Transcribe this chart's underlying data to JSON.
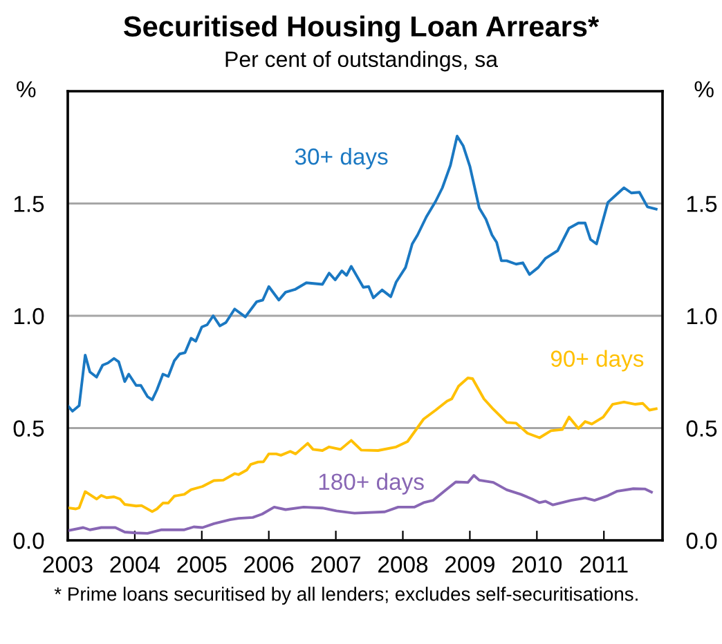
{
  "chart_data": {
    "type": "line",
    "title": "Securitised Housing Loan Arrears*",
    "subtitle": "Per cent of outstandings, sa",
    "ylabel": "%",
    "y2label": "%",
    "annotations": [
      "* Prime loans securitised by all lenders; excludes self-securitisations."
    ],
    "xlim": [
      2003,
      2011.875
    ],
    "xticks": [
      2003,
      2004,
      2005,
      2006,
      2007,
      2008,
      2009,
      2010,
      2011
    ],
    "ylim": [
      0,
      2
    ],
    "yticks": [
      {
        "value": 0,
        "label": "0.0"
      },
      {
        "value": 0.5,
        "label": "0.5"
      },
      {
        "value": 1,
        "label": "1.0"
      },
      {
        "value": 1.5,
        "label": "1.5"
      }
    ],
    "y2lim": [
      0,
      2
    ],
    "y2ticks": [
      {
        "value": 0,
        "label": "0.0"
      },
      {
        "value": 0.5,
        "label": "0.5"
      },
      {
        "value": 1,
        "label": "1.0"
      },
      {
        "value": 1.5,
        "label": "1.5"
      }
    ],
    "grid": "y",
    "legend": false,
    "marker": "none",
    "line_style": "solid",
    "series": [
      {
        "name": "30+ days",
        "color": "#1a78c2",
        "x": [
          2003.0,
          2003.07,
          2003.17,
          2003.26,
          2003.33,
          2003.43,
          2003.52,
          2003.6,
          2003.69,
          2003.76,
          2003.85,
          2003.91,
          2004.02,
          2004.09,
          2004.19,
          2004.26,
          2004.33,
          2004.42,
          2004.5,
          2004.59,
          2004.67,
          2004.75,
          2004.84,
          2004.91,
          2005.0,
          2005.08,
          2005.17,
          2005.27,
          2005.36,
          2005.49,
          2005.65,
          2005.82,
          2005.91,
          2006.0,
          2006.15,
          2006.25,
          2006.39,
          2006.56,
          2006.8,
          2006.9,
          2006.99,
          2007.09,
          2007.16,
          2007.23,
          2007.41,
          2007.49,
          2007.56,
          2007.69,
          2007.82,
          2007.9,
          2008.04,
          2008.14,
          2008.22,
          2008.35,
          2008.49,
          2008.59,
          2008.71,
          2008.81,
          2008.9,
          2009.0,
          2009.14,
          2009.24,
          2009.33,
          2009.4,
          2009.47,
          2009.55,
          2009.69,
          2009.79,
          2009.89,
          2010.02,
          2010.13,
          2010.31,
          2010.48,
          2010.62,
          2010.72,
          2010.8,
          2010.89,
          2011.06,
          2011.2,
          2011.3,
          2011.41,
          2011.53,
          2011.65,
          2011.78
        ],
        "values": [
          0.6,
          0.575,
          0.6,
          0.825,
          0.75,
          0.727,
          0.78,
          0.79,
          0.81,
          0.795,
          0.707,
          0.74,
          0.69,
          0.69,
          0.64,
          0.626,
          0.67,
          0.74,
          0.73,
          0.8,
          0.83,
          0.836,
          0.9,
          0.887,
          0.95,
          0.96,
          1.0,
          0.955,
          0.97,
          1.03,
          0.995,
          1.063,
          1.07,
          1.13,
          1.07,
          1.105,
          1.117,
          1.147,
          1.14,
          1.19,
          1.16,
          1.2,
          1.18,
          1.22,
          1.127,
          1.13,
          1.08,
          1.115,
          1.085,
          1.15,
          1.215,
          1.32,
          1.36,
          1.44,
          1.51,
          1.57,
          1.67,
          1.8,
          1.757,
          1.666,
          1.48,
          1.43,
          1.36,
          1.327,
          1.245,
          1.245,
          1.23,
          1.236,
          1.184,
          1.215,
          1.256,
          1.29,
          1.39,
          1.413,
          1.413,
          1.34,
          1.32,
          1.505,
          1.543,
          1.57,
          1.547,
          1.55,
          1.485,
          1.475
        ]
      },
      {
        "name": "90+ days",
        "color": "#ffc000",
        "x": [
          2003.0,
          2003.12,
          2003.17,
          2003.26,
          2003.43,
          2003.5,
          2003.58,
          2003.69,
          2003.78,
          2003.85,
          2004.02,
          2004.1,
          2004.26,
          2004.33,
          2004.42,
          2004.5,
          2004.59,
          2004.74,
          2004.84,
          2005.01,
          2005.18,
          2005.32,
          2005.49,
          2005.55,
          2005.67,
          2005.73,
          2005.84,
          2005.92,
          2006.0,
          2006.11,
          2006.18,
          2006.32,
          2006.4,
          2006.58,
          2006.66,
          2006.8,
          2006.9,
          2007.07,
          2007.23,
          2007.38,
          2007.63,
          2007.9,
          2008.07,
          2008.31,
          2008.49,
          2008.66,
          2008.73,
          2008.83,
          2008.97,
          2009.04,
          2009.21,
          2009.35,
          2009.55,
          2009.69,
          2009.86,
          2010.04,
          2010.21,
          2010.38,
          2010.48,
          2010.62,
          2010.72,
          2010.82,
          2010.99,
          2011.13,
          2011.3,
          2011.47,
          2011.58,
          2011.68,
          2011.78
        ],
        "values": [
          0.145,
          0.14,
          0.145,
          0.217,
          0.184,
          0.2,
          0.19,
          0.194,
          0.184,
          0.16,
          0.153,
          0.155,
          0.128,
          0.14,
          0.166,
          0.166,
          0.197,
          0.205,
          0.226,
          0.24,
          0.266,
          0.268,
          0.297,
          0.293,
          0.313,
          0.338,
          0.349,
          0.35,
          0.385,
          0.385,
          0.379,
          0.396,
          0.385,
          0.432,
          0.405,
          0.4,
          0.416,
          0.405,
          0.445,
          0.402,
          0.4,
          0.416,
          0.44,
          0.54,
          0.58,
          0.62,
          0.63,
          0.686,
          0.723,
          0.72,
          0.63,
          0.584,
          0.525,
          0.522,
          0.477,
          0.457,
          0.488,
          0.494,
          0.549,
          0.498,
          0.529,
          0.518,
          0.549,
          0.606,
          0.616,
          0.606,
          0.61,
          0.58,
          0.586
        ]
      },
      {
        "name": "180+ days",
        "color": "#8866b4",
        "x": [
          2003.0,
          2003.23,
          2003.33,
          2003.5,
          2003.71,
          2003.85,
          2004.02,
          2004.19,
          2004.4,
          2004.74,
          2004.88,
          2005.01,
          2005.18,
          2005.42,
          2005.55,
          2005.76,
          2005.9,
          2006.08,
          2006.25,
          2006.52,
          2006.8,
          2007.01,
          2007.28,
          2007.73,
          2007.93,
          2008.17,
          2008.31,
          2008.45,
          2008.62,
          2008.79,
          2008.97,
          2009.06,
          2009.14,
          2009.35,
          2009.55,
          2009.76,
          2009.93,
          2010.04,
          2010.13,
          2010.24,
          2010.51,
          2010.72,
          2010.86,
          2011.06,
          2011.2,
          2011.44,
          2011.61,
          2011.71
        ],
        "values": [
          0.043,
          0.057,
          0.047,
          0.057,
          0.057,
          0.037,
          0.033,
          0.031,
          0.047,
          0.047,
          0.06,
          0.057,
          0.074,
          0.092,
          0.098,
          0.102,
          0.117,
          0.148,
          0.137,
          0.148,
          0.144,
          0.131,
          0.121,
          0.127,
          0.148,
          0.148,
          0.168,
          0.178,
          0.219,
          0.26,
          0.258,
          0.289,
          0.268,
          0.258,
          0.225,
          0.205,
          0.184,
          0.168,
          0.174,
          0.158,
          0.178,
          0.189,
          0.178,
          0.199,
          0.219,
          0.23,
          0.229,
          0.215
        ]
      }
    ]
  }
}
